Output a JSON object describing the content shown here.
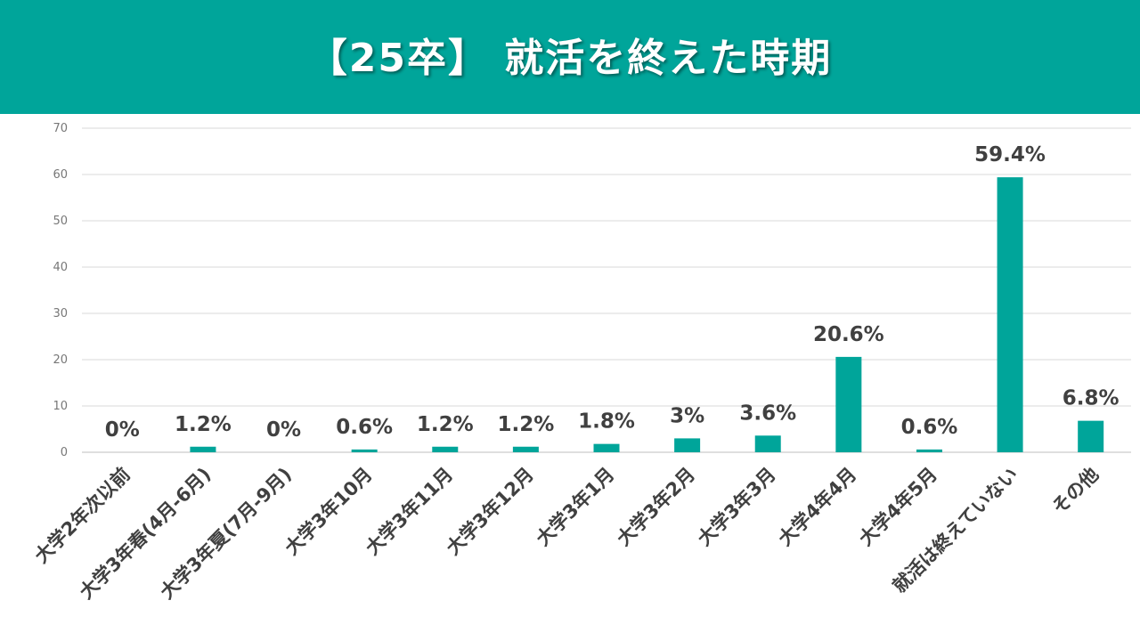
{
  "header": {
    "title": "【25卒】 就活を終えた時期",
    "background": "#00A59A"
  },
  "chart_data": {
    "type": "bar",
    "title": "【25卒】 就活を終えた時期",
    "categories": [
      "大学2年次以前",
      "大学3年春(4月-6月)",
      "大学3年夏(7月-9月)",
      "大学3年10月",
      "大学3年11月",
      "大学3年12月",
      "大学3年1月",
      "大学3年2月",
      "大学3年3月",
      "大学4年4月",
      "大学4年5月",
      "就活は終えていない",
      "その他"
    ],
    "values": [
      0,
      1.2,
      0,
      0.6,
      1.2,
      1.2,
      1.8,
      3,
      3.6,
      20.6,
      0.6,
      59.4,
      6.8
    ],
    "data_labels": [
      "0%",
      "1.2%",
      "0%",
      "0.6%",
      "1.2%",
      "1.2%",
      "1.8%",
      "3%",
      "3.6%",
      "20.6%",
      "0.6%",
      "59.4%",
      "6.8%"
    ],
    "y_ticks": [
      "0",
      "10",
      "20",
      "30",
      "40",
      "50",
      "60",
      "70"
    ],
    "ylim": [
      0,
      70
    ],
    "bar_color": "#00A59A",
    "grid": true,
    "xlabel": "",
    "ylabel": ""
  }
}
